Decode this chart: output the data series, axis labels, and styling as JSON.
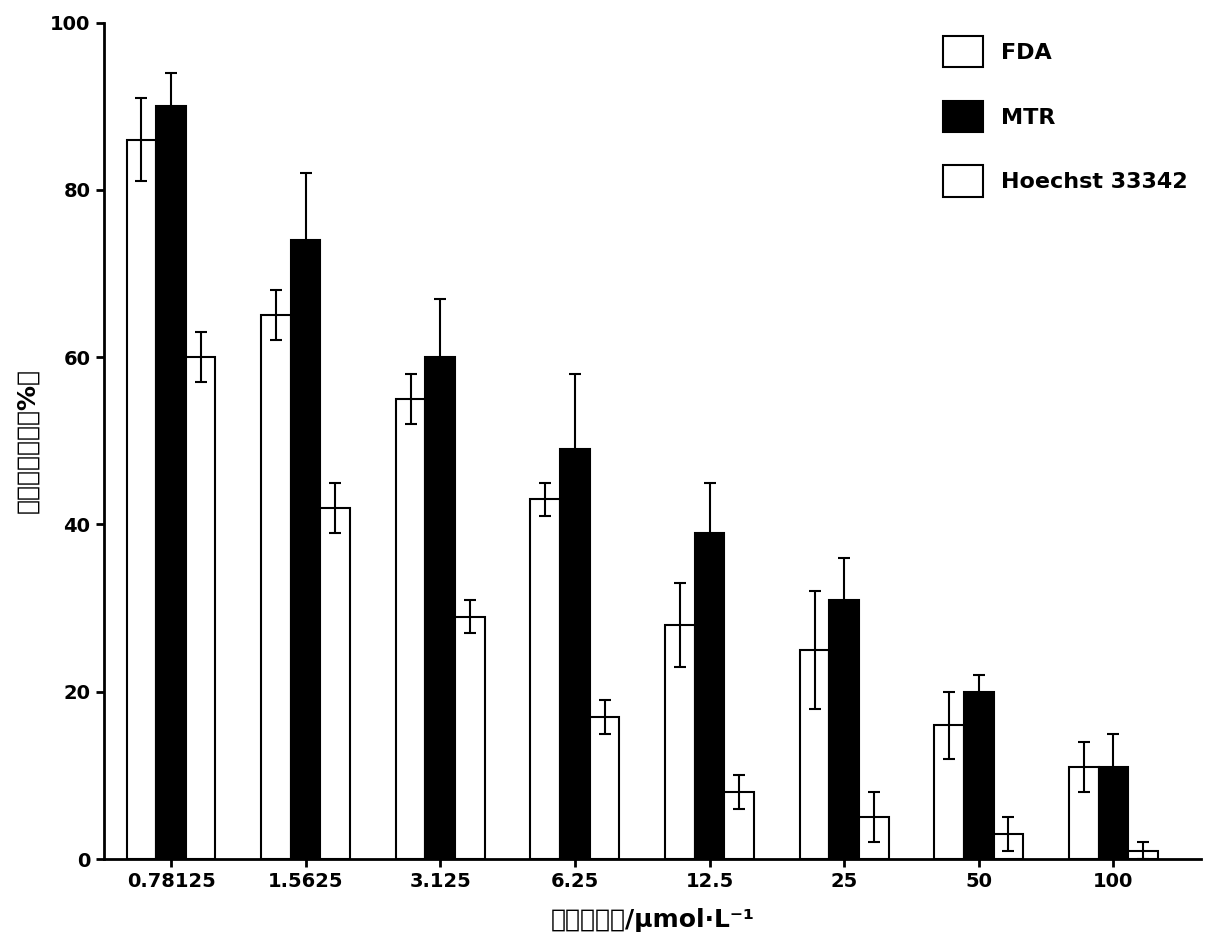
{
  "categories": [
    "0.78125",
    "1.5625",
    "3.125",
    "6.25",
    "12.5",
    "25",
    "50",
    "100"
  ],
  "FDA": [
    86,
    65,
    55,
    43,
    28,
    25,
    16,
    11
  ],
  "MTR": [
    90,
    74,
    60,
    49,
    39,
    31,
    20,
    11
  ],
  "Hoechst": [
    60,
    42,
    29,
    17,
    8,
    5,
    3,
    1
  ],
  "FDA_err": [
    5,
    3,
    3,
    2,
    5,
    7,
    4,
    3
  ],
  "MTR_err": [
    4,
    8,
    7,
    9,
    6,
    5,
    2,
    4
  ],
  "Hoechst_err": [
    3,
    3,
    2,
    2,
    2,
    3,
    2,
    1
  ],
  "ylabel": "相对荧光强度（%）",
  "xlabel": "盐酸阿霉素/μmol·L⁻¹",
  "ylim": [
    0,
    100
  ],
  "legend_labels": [
    "FDA",
    "MTR",
    "Hoechst 33342"
  ],
  "FDA_color": "#ffffff",
  "MTR_color": "#000000",
  "Hoechst_color": "#ffffff",
  "bar_edge_color": "#000000",
  "background_color": "#ffffff",
  "bar_linewidth": 1.5,
  "axis_fontsize": 18,
  "tick_fontsize": 14,
  "legend_fontsize": 16,
  "bar_width": 0.22
}
